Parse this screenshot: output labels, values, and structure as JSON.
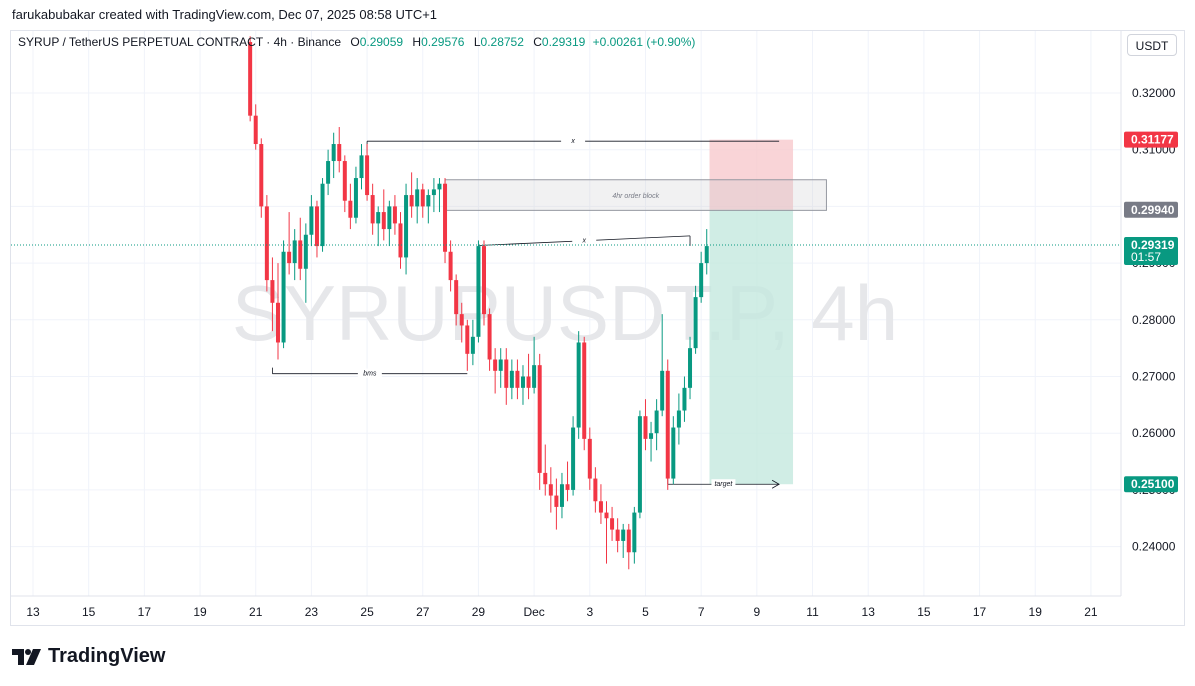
{
  "header": {
    "credit": "farukabubakar created with TradingView.com, Dec 07, 2025 08:58 UTC+1"
  },
  "legend": {
    "symbol": "SYRUP / TetherUS PERPETUAL CONTRACT · 4h · Binance",
    "open_label": "O",
    "open": "0.29059",
    "high_label": "H",
    "high": "0.29576",
    "low_label": "L",
    "low": "0.28752",
    "close_label": "C",
    "close": "0.29319",
    "change": "+0.00261 (+0.90%)"
  },
  "currency_button": "USDT",
  "watermark": "SYRUPUSDT.P, 4h",
  "brand": "TradingView",
  "price_axis": {
    "ticks": [
      "0.32000",
      "0.31000",
      "0.29000",
      "0.28000",
      "0.27000",
      "0.26000",
      "0.25000",
      "0.24000"
    ],
    "labels": [
      {
        "text": "0.31177",
        "value": 0.31177,
        "color": "#f23645"
      },
      {
        "text": "0.29940",
        "value": 0.2994,
        "color": "#787b86"
      },
      {
        "text": "0.29319",
        "sub": "01:57",
        "value": 0.29319,
        "color": "#089981"
      },
      {
        "text": "0.25100",
        "value": 0.251,
        "color": "#089981"
      }
    ]
  },
  "time_axis": {
    "ticks": [
      {
        "label": "13",
        "day": 13
      },
      {
        "label": "15",
        "day": 15
      },
      {
        "label": "17",
        "day": 17
      },
      {
        "label": "19",
        "day": 19
      },
      {
        "label": "21",
        "day": 21
      },
      {
        "label": "23",
        "day": 23
      },
      {
        "label": "25",
        "day": 25
      },
      {
        "label": "27",
        "day": 27
      },
      {
        "label": "29",
        "day": 29
      },
      {
        "label": "Dec",
        "day": 31
      },
      {
        "label": "3",
        "day": 33
      },
      {
        "label": "5",
        "day": 35
      },
      {
        "label": "7",
        "day": 37
      },
      {
        "label": "9",
        "day": 39
      },
      {
        "label": "11",
        "day": 41
      },
      {
        "label": "13",
        "day": 43
      },
      {
        "label": "15",
        "day": 45
      },
      {
        "label": "17",
        "day": 47
      },
      {
        "label": "19",
        "day": 49
      },
      {
        "label": "21",
        "day": 51
      }
    ]
  },
  "annotations": {
    "order_block": "4hr order block",
    "bms": "bms",
    "target": "target",
    "x_top": "x",
    "x_mid": "x"
  },
  "colors": {
    "up": "#089981",
    "down": "#f23645",
    "grid": "#f0f3fa",
    "stop_zone": "#f7c9cd",
    "target_zone": "#c4e8df"
  },
  "chart_data": {
    "type": "candlestick",
    "title": "SYRUP / TetherUS PERPETUAL CONTRACT · 4h · Binance",
    "x_unit": "day (Nov 13 = 13, Dec 1 = 31)",
    "ylim": [
      0.234,
      0.328
    ],
    "grid": true,
    "ohlc": [
      [
        20.8,
        0.329,
        0.33,
        0.315,
        0.316
      ],
      [
        21.0,
        0.316,
        0.318,
        0.31,
        0.311
      ],
      [
        21.2,
        0.311,
        0.312,
        0.298,
        0.3
      ],
      [
        21.4,
        0.3,
        0.302,
        0.285,
        0.287
      ],
      [
        21.6,
        0.287,
        0.291,
        0.278,
        0.283
      ],
      [
        21.8,
        0.283,
        0.29,
        0.273,
        0.276
      ],
      [
        22.0,
        0.276,
        0.294,
        0.275,
        0.292
      ],
      [
        22.2,
        0.292,
        0.299,
        0.288,
        0.29
      ],
      [
        22.4,
        0.29,
        0.296,
        0.287,
        0.294
      ],
      [
        22.6,
        0.294,
        0.298,
        0.287,
        0.289
      ],
      [
        22.8,
        0.289,
        0.297,
        0.283,
        0.295
      ],
      [
        23.0,
        0.295,
        0.302,
        0.293,
        0.3
      ],
      [
        23.2,
        0.3,
        0.301,
        0.291,
        0.293
      ],
      [
        23.4,
        0.293,
        0.305,
        0.292,
        0.304
      ],
      [
        23.6,
        0.304,
        0.31,
        0.302,
        0.308
      ],
      [
        23.8,
        0.308,
        0.313,
        0.305,
        0.311
      ],
      [
        24.0,
        0.311,
        0.314,
        0.306,
        0.308
      ],
      [
        24.2,
        0.308,
        0.309,
        0.299,
        0.301
      ],
      [
        24.4,
        0.301,
        0.304,
        0.296,
        0.298
      ],
      [
        24.6,
        0.298,
        0.307,
        0.297,
        0.305
      ],
      [
        24.8,
        0.305,
        0.311,
        0.303,
        0.309
      ],
      [
        25.0,
        0.309,
        0.311,
        0.301,
        0.302
      ],
      [
        25.2,
        0.302,
        0.304,
        0.295,
        0.297
      ],
      [
        25.4,
        0.297,
        0.3,
        0.293,
        0.299
      ],
      [
        25.6,
        0.299,
        0.303,
        0.294,
        0.296
      ],
      [
        25.8,
        0.296,
        0.301,
        0.293,
        0.3
      ],
      [
        26.0,
        0.3,
        0.302,
        0.295,
        0.297
      ],
      [
        26.2,
        0.297,
        0.299,
        0.289,
        0.291
      ],
      [
        26.4,
        0.291,
        0.304,
        0.288,
        0.302
      ],
      [
        26.6,
        0.302,
        0.306,
        0.298,
        0.3
      ],
      [
        26.8,
        0.3,
        0.305,
        0.297,
        0.303
      ],
      [
        27.0,
        0.303,
        0.304,
        0.298,
        0.3
      ],
      [
        27.2,
        0.3,
        0.303,
        0.297,
        0.302
      ],
      [
        27.4,
        0.302,
        0.305,
        0.299,
        0.303
      ],
      [
        27.6,
        0.303,
        0.305,
        0.299,
        0.304
      ],
      [
        27.8,
        0.304,
        0.305,
        0.29,
        0.292
      ],
      [
        28.0,
        0.292,
        0.294,
        0.285,
        0.287
      ],
      [
        28.2,
        0.287,
        0.288,
        0.279,
        0.281
      ],
      [
        28.4,
        0.281,
        0.283,
        0.276,
        0.279
      ],
      [
        28.6,
        0.279,
        0.28,
        0.271,
        0.274
      ],
      [
        28.8,
        0.274,
        0.28,
        0.272,
        0.277
      ],
      [
        29.0,
        0.277,
        0.294,
        0.276,
        0.293
      ],
      [
        29.2,
        0.293,
        0.294,
        0.279,
        0.281
      ],
      [
        29.4,
        0.281,
        0.282,
        0.271,
        0.273
      ],
      [
        29.6,
        0.273,
        0.275,
        0.267,
        0.271
      ],
      [
        29.8,
        0.271,
        0.275,
        0.268,
        0.273
      ],
      [
        30.0,
        0.273,
        0.275,
        0.265,
        0.268
      ],
      [
        30.2,
        0.268,
        0.273,
        0.266,
        0.271
      ],
      [
        30.4,
        0.271,
        0.273,
        0.266,
        0.268
      ],
      [
        30.6,
        0.268,
        0.272,
        0.265,
        0.27
      ],
      [
        30.8,
        0.27,
        0.274,
        0.266,
        0.268
      ],
      [
        31.0,
        0.268,
        0.277,
        0.267,
        0.272
      ],
      [
        31.2,
        0.272,
        0.274,
        0.25,
        0.253
      ],
      [
        31.4,
        0.253,
        0.258,
        0.249,
        0.251
      ],
      [
        31.6,
        0.251,
        0.254,
        0.246,
        0.249
      ],
      [
        31.8,
        0.249,
        0.252,
        0.243,
        0.247
      ],
      [
        32.0,
        0.247,
        0.253,
        0.245,
        0.251
      ],
      [
        32.2,
        0.251,
        0.255,
        0.248,
        0.25
      ],
      [
        32.4,
        0.25,
        0.263,
        0.249,
        0.261
      ],
      [
        32.6,
        0.261,
        0.278,
        0.259,
        0.276
      ],
      [
        32.8,
        0.276,
        0.277,
        0.257,
        0.259
      ],
      [
        33.0,
        0.259,
        0.261,
        0.25,
        0.252
      ],
      [
        33.2,
        0.252,
        0.254,
        0.246,
        0.248
      ],
      [
        33.4,
        0.248,
        0.251,
        0.244,
        0.246
      ],
      [
        33.6,
        0.246,
        0.248,
        0.237,
        0.245
      ],
      [
        33.8,
        0.245,
        0.247,
        0.241,
        0.243
      ],
      [
        34.0,
        0.243,
        0.245,
        0.239,
        0.241
      ],
      [
        34.2,
        0.241,
        0.244,
        0.238,
        0.243
      ],
      [
        34.4,
        0.243,
        0.244,
        0.236,
        0.239
      ],
      [
        34.6,
        0.239,
        0.247,
        0.237,
        0.246
      ],
      [
        34.8,
        0.246,
        0.264,
        0.245,
        0.263
      ],
      [
        35.0,
        0.263,
        0.266,
        0.257,
        0.259
      ],
      [
        35.2,
        0.259,
        0.262,
        0.255,
        0.26
      ],
      [
        35.4,
        0.26,
        0.266,
        0.257,
        0.264
      ],
      [
        35.6,
        0.264,
        0.281,
        0.263,
        0.271
      ],
      [
        35.8,
        0.271,
        0.273,
        0.25,
        0.252
      ],
      [
        36.0,
        0.252,
        0.263,
        0.251,
        0.261
      ],
      [
        36.2,
        0.261,
        0.267,
        0.258,
        0.264
      ],
      [
        36.4,
        0.264,
        0.27,
        0.262,
        0.268
      ],
      [
        36.6,
        0.268,
        0.277,
        0.266,
        0.275
      ],
      [
        36.8,
        0.275,
        0.286,
        0.274,
        0.284
      ],
      [
        37.0,
        0.284,
        0.292,
        0.283,
        0.29
      ],
      [
        37.2,
        0.29,
        0.296,
        0.288,
        0.293
      ]
    ],
    "lines": [
      {
        "name": "x_top",
        "x1": 25.0,
        "y1": 0.3115,
        "x2": 39.8,
        "y2": 0.3115
      },
      {
        "name": "order_block_box",
        "x1": 27.8,
        "y1": 0.3047,
        "x2": 41.5,
        "y2": 0.2993
      },
      {
        "name": "x_mid",
        "x1": 29.0,
        "y1": 0.2931,
        "x2": 36.6,
        "y2": 0.2948
      },
      {
        "name": "bms",
        "x1": 21.6,
        "y1": 0.2705,
        "x2": 28.6,
        "y2": 0.2705
      },
      {
        "name": "target",
        "x1": 35.8,
        "y1": 0.251,
        "x2": 39.8,
        "y2": 0.251
      }
    ],
    "position": {
      "type": "short",
      "entry": 0.2994,
      "stop": 0.31177,
      "target": 0.251,
      "x_start": 37.3,
      "x_end": 40.3
    },
    "last_price": 0.29319
  }
}
